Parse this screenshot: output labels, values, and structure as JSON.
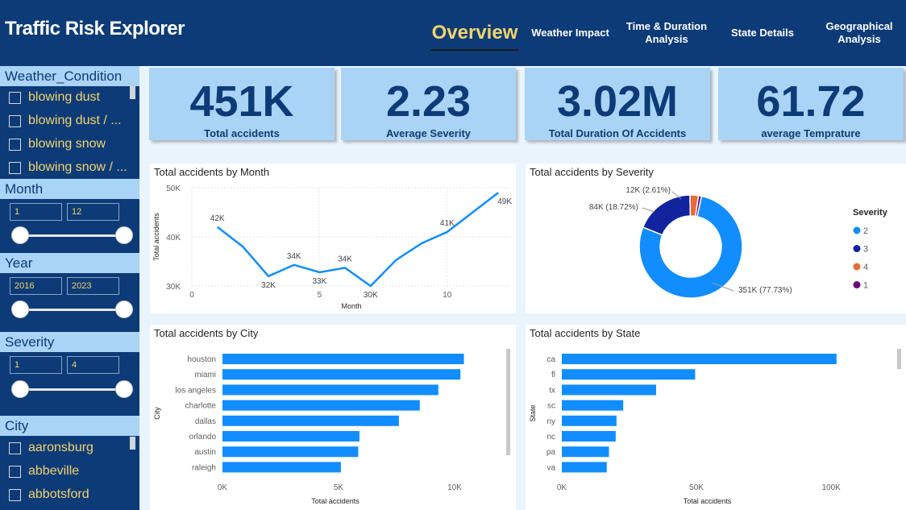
{
  "header": {
    "title": "Traffic Risk Explorer",
    "tabs": [
      {
        "label": "Overview",
        "active": true
      },
      {
        "label": "Weather Impact"
      },
      {
        "label": "Time & Duration Analysis"
      },
      {
        "label": "State Details"
      },
      {
        "label": "Geographical Analysis"
      }
    ]
  },
  "sidebar": {
    "weather": {
      "title": "Weather_Condition",
      "items": [
        "blowing dust",
        "blowing dust / ...",
        "blowing snow",
        "blowing snow / ..."
      ]
    },
    "month": {
      "title": "Month",
      "min": "1",
      "max": "12"
    },
    "year": {
      "title": "Year",
      "min": "2016",
      "max": "2023"
    },
    "severity": {
      "title": "Severity",
      "min": "1",
      "max": "4"
    },
    "city": {
      "title": "City",
      "items": [
        "aaronsburg",
        "abbeville",
        "abbotsford"
      ]
    }
  },
  "kpis": [
    {
      "value": "451K",
      "label": "Total accidents"
    },
    {
      "value": "2.23",
      "label": "Average Severity"
    },
    {
      "value": "3.02M",
      "label": "Total Duration Of Accidents"
    },
    {
      "value": "61.72",
      "label": "average Temprature"
    }
  ],
  "colors": {
    "accent": "#118dff",
    "navy": "#0d3b78",
    "gold": "#f3d46b",
    "severity_2": "#118dff",
    "severity_3": "#12239e",
    "severity_4": "#e66c37",
    "severity_1": "#6b007b"
  },
  "chart_data": [
    {
      "type": "line",
      "title": "Total accidents by Month",
      "xlabel": "Month",
      "ylabel": "Total accidents",
      "x": [
        1,
        2,
        3,
        4,
        5,
        6,
        7,
        8,
        9,
        10,
        11,
        12
      ],
      "values": [
        42,
        38,
        32,
        34.3,
        32.8,
        33.7,
        30,
        35.3,
        38.7,
        41,
        45,
        49
      ],
      "value_labels": [
        "42K",
        "",
        "32K",
        "34K",
        "33K",
        "34K",
        "30K",
        "",
        "",
        "41K",
        "",
        "49K"
      ],
      "x_ticks": [
        "0",
        "5",
        "10"
      ],
      "y_ticks": [
        "30K",
        "40K",
        "50K"
      ],
      "ylim": [
        30,
        50
      ],
      "xlim": [
        0,
        12.5
      ]
    },
    {
      "type": "pie",
      "title": "Total accidents by Severity",
      "legend_title": "Severity",
      "legend_position": "right",
      "slices": [
        {
          "name": "2",
          "value": 351,
          "label": "351K (77.73%)",
          "color": "#118dff"
        },
        {
          "name": "3",
          "value": 84,
          "label": "84K (18.72%)",
          "color": "#12239e"
        },
        {
          "name": "4",
          "value": 12,
          "label": "12K (2.61%)",
          "color": "#e66c37"
        },
        {
          "name": "1",
          "value": 4.2,
          "label": "",
          "color": "#6b007b"
        }
      ]
    },
    {
      "type": "bar",
      "title": "Total accidents by City",
      "xlabel": "Total accidents",
      "ylabel": "City",
      "categories": [
        "houston",
        "miami",
        "los angeles",
        "charlotte",
        "dallas",
        "orlando",
        "austin",
        "raleigh"
      ],
      "values": [
        10400,
        10250,
        9300,
        8500,
        7600,
        5900,
        5850,
        5100
      ],
      "x_ticks": [
        "0K",
        "5K",
        "10K"
      ],
      "xlim": [
        0,
        12500
      ]
    },
    {
      "type": "bar",
      "title": "Total accidents by State",
      "xlabel": "Total accidents",
      "ylabel": "State",
      "categories": [
        "ca",
        "fl",
        "tx",
        "sc",
        "ny",
        "nc",
        "pa",
        "va"
      ],
      "values": [
        102000,
        49500,
        35000,
        22800,
        20300,
        20000,
        17500,
        16700
      ],
      "x_ticks": [
        "0K",
        "50K",
        "100K"
      ],
      "xlim": [
        0,
        120000
      ]
    }
  ]
}
